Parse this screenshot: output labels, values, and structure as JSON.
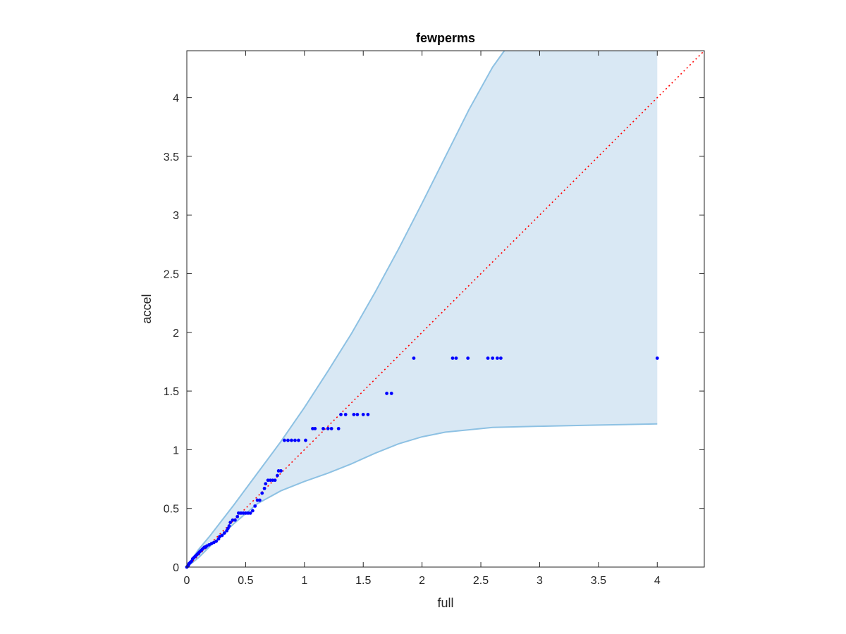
{
  "chart_data": {
    "type": "scatter",
    "title": "fewperms",
    "xlabel": "full",
    "ylabel": "accel",
    "xlim": [
      0,
      4.4
    ],
    "ylim": [
      0,
      4.4
    ],
    "xticks": [
      0,
      0.5,
      1,
      1.5,
      2,
      2.5,
      3,
      3.5,
      4
    ],
    "yticks": [
      0,
      0.5,
      1,
      1.5,
      2,
      2.5,
      3,
      3.5,
      4
    ],
    "xtick_labels": [
      "0",
      "0.5",
      "1",
      "1.5",
      "2",
      "2.5",
      "3",
      "3.5",
      "4"
    ],
    "ytick_labels": [
      "0",
      "0.5",
      "1",
      "1.5",
      "2",
      "2.5",
      "3",
      "3.5",
      "4"
    ],
    "grid": false,
    "legend": "none",
    "colors": {
      "points": "#0000ff",
      "band_fill": "#d9e8f4",
      "band_edge": "#8dc1e3",
      "reference_line": "#ff0000",
      "axes": "#262626"
    },
    "reference_line": {
      "style": "dotted",
      "x": [
        0,
        4.4
      ],
      "y": [
        0,
        4.4
      ]
    },
    "band": {
      "x_end": 4.0,
      "upper": [
        [
          0,
          0
        ],
        [
          0.1,
          0.15
        ],
        [
          0.2,
          0.27
        ],
        [
          0.4,
          0.53
        ],
        [
          0.6,
          0.8
        ],
        [
          0.8,
          1.07
        ],
        [
          1.0,
          1.36
        ],
        [
          1.2,
          1.67
        ],
        [
          1.4,
          1.99
        ],
        [
          1.6,
          2.34
        ],
        [
          1.8,
          2.71
        ],
        [
          2.0,
          3.1
        ],
        [
          2.2,
          3.5
        ],
        [
          2.4,
          3.9
        ],
        [
          2.6,
          4.26
        ],
        [
          2.7,
          4.4
        ]
      ],
      "lower": [
        [
          0,
          0
        ],
        [
          0.1,
          0.08
        ],
        [
          0.2,
          0.18
        ],
        [
          0.4,
          0.37
        ],
        [
          0.6,
          0.54
        ],
        [
          0.8,
          0.65
        ],
        [
          1.0,
          0.73
        ],
        [
          1.2,
          0.8
        ],
        [
          1.4,
          0.88
        ],
        [
          1.6,
          0.97
        ],
        [
          1.8,
          1.05
        ],
        [
          2.0,
          1.11
        ],
        [
          2.2,
          1.15
        ],
        [
          2.6,
          1.19
        ],
        [
          3.0,
          1.2
        ],
        [
          3.5,
          1.21
        ],
        [
          4.0,
          1.22
        ]
      ]
    },
    "points": [
      {
        "x": 0,
        "y": 0
      },
      {
        "x": 0.005,
        "y": 0.005
      },
      {
        "x": 0.01,
        "y": 0.01
      },
      {
        "x": 0.015,
        "y": 0.02
      },
      {
        "x": 0.02,
        "y": 0.03
      },
      {
        "x": 0.03,
        "y": 0.04
      },
      {
        "x": 0.04,
        "y": 0.05
      },
      {
        "x": 0.05,
        "y": 0.07
      },
      {
        "x": 0.06,
        "y": 0.08
      },
      {
        "x": 0.07,
        "y": 0.09
      },
      {
        "x": 0.08,
        "y": 0.1
      },
      {
        "x": 0.09,
        "y": 0.11
      },
      {
        "x": 0.1,
        "y": 0.12
      },
      {
        "x": 0.11,
        "y": 0.13
      },
      {
        "x": 0.12,
        "y": 0.14
      },
      {
        "x": 0.13,
        "y": 0.15
      },
      {
        "x": 0.14,
        "y": 0.16
      },
      {
        "x": 0.15,
        "y": 0.17
      },
      {
        "x": 0.16,
        "y": 0.17
      },
      {
        "x": 0.17,
        "y": 0.18
      },
      {
        "x": 0.19,
        "y": 0.19
      },
      {
        "x": 0.21,
        "y": 0.2
      },
      {
        "x": 0.23,
        "y": 0.21
      },
      {
        "x": 0.25,
        "y": 0.22
      },
      {
        "x": 0.27,
        "y": 0.24
      },
      {
        "x": 0.28,
        "y": 0.26
      },
      {
        "x": 0.3,
        "y": 0.27
      },
      {
        "x": 0.32,
        "y": 0.29
      },
      {
        "x": 0.34,
        "y": 0.31
      },
      {
        "x": 0.35,
        "y": 0.33
      },
      {
        "x": 0.36,
        "y": 0.35
      },
      {
        "x": 0.37,
        "y": 0.38
      },
      {
        "x": 0.39,
        "y": 0.4
      },
      {
        "x": 0.41,
        "y": 0.4
      },
      {
        "x": 0.43,
        "y": 0.43
      },
      {
        "x": 0.44,
        "y": 0.46
      },
      {
        "x": 0.46,
        "y": 0.46
      },
      {
        "x": 0.48,
        "y": 0.46
      },
      {
        "x": 0.5,
        "y": 0.46
      },
      {
        "x": 0.52,
        "y": 0.46
      },
      {
        "x": 0.54,
        "y": 0.46
      },
      {
        "x": 0.56,
        "y": 0.48
      },
      {
        "x": 0.58,
        "y": 0.52
      },
      {
        "x": 0.6,
        "y": 0.57
      },
      {
        "x": 0.62,
        "y": 0.57
      },
      {
        "x": 0.64,
        "y": 0.63
      },
      {
        "x": 0.66,
        "y": 0.67
      },
      {
        "x": 0.67,
        "y": 0.71
      },
      {
        "x": 0.69,
        "y": 0.74
      },
      {
        "x": 0.71,
        "y": 0.74
      },
      {
        "x": 0.73,
        "y": 0.74
      },
      {
        "x": 0.75,
        "y": 0.74
      },
      {
        "x": 0.77,
        "y": 0.78
      },
      {
        "x": 0.78,
        "y": 0.82
      },
      {
        "x": 0.8,
        "y": 0.82
      },
      {
        "x": 0.83,
        "y": 1.08
      },
      {
        "x": 0.86,
        "y": 1.08
      },
      {
        "x": 0.89,
        "y": 1.08
      },
      {
        "x": 0.92,
        "y": 1.08
      },
      {
        "x": 0.95,
        "y": 1.08
      },
      {
        "x": 1.01,
        "y": 1.08
      },
      {
        "x": 1.07,
        "y": 1.18
      },
      {
        "x": 1.09,
        "y": 1.18
      },
      {
        "x": 1.16,
        "y": 1.18
      },
      {
        "x": 1.2,
        "y": 1.18
      },
      {
        "x": 1.23,
        "y": 1.18
      },
      {
        "x": 1.29,
        "y": 1.18
      },
      {
        "x": 1.31,
        "y": 1.3
      },
      {
        "x": 1.35,
        "y": 1.3
      },
      {
        "x": 1.42,
        "y": 1.3
      },
      {
        "x": 1.45,
        "y": 1.3
      },
      {
        "x": 1.5,
        "y": 1.3
      },
      {
        "x": 1.54,
        "y": 1.3
      },
      {
        "x": 1.7,
        "y": 1.48
      },
      {
        "x": 1.74,
        "y": 1.48
      },
      {
        "x": 1.93,
        "y": 1.78
      },
      {
        "x": 2.26,
        "y": 1.78
      },
      {
        "x": 2.29,
        "y": 1.78
      },
      {
        "x": 2.39,
        "y": 1.78
      },
      {
        "x": 2.56,
        "y": 1.78
      },
      {
        "x": 2.6,
        "y": 1.78
      },
      {
        "x": 2.64,
        "y": 1.78
      },
      {
        "x": 2.67,
        "y": 1.78
      },
      {
        "x": 4.0,
        "y": 1.78
      }
    ]
  }
}
